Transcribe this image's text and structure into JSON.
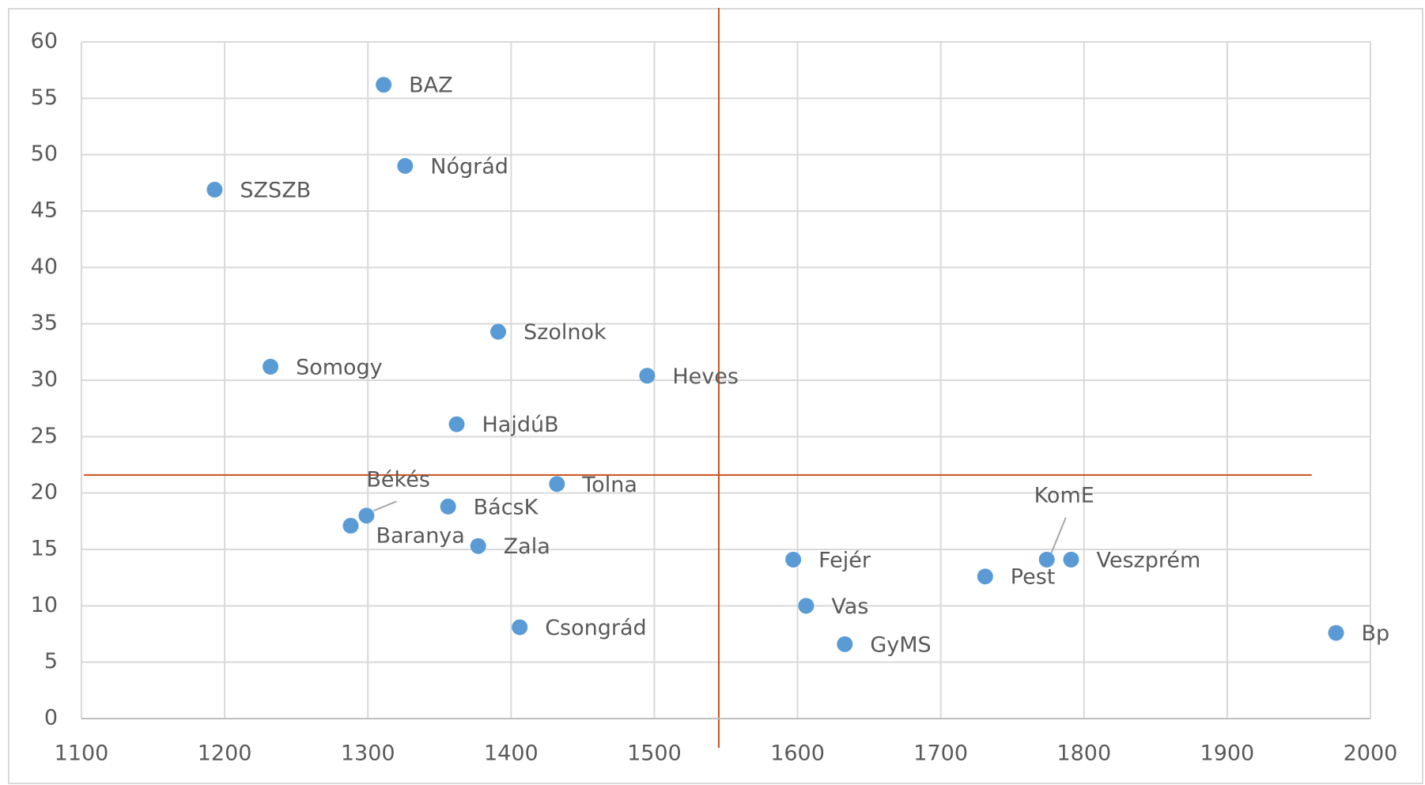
{
  "chart_data": {
    "type": "scatter",
    "series": [
      {
        "color": "#5b9bd5",
        "labels": [
          "BAZ",
          "Nógrád",
          "SZSZB",
          "Szolnok",
          "Somogy",
          "Heves",
          "HajdúB",
          "Tolna",
          "Békés",
          "BácsK",
          "Baranya",
          "Zala",
          "Csongrád",
          "Fejér",
          "Vas",
          "GyMS",
          "Pest",
          "KomE",
          "Veszprém",
          "Bp"
        ],
        "x": [
          1311,
          1326,
          1193,
          1391,
          1232,
          1495,
          1362,
          1432,
          1299,
          1356,
          1288,
          1377,
          1406,
          1597,
          1606,
          1633,
          1731,
          1774,
          1791,
          1976
        ],
        "values": [
          56.2,
          49.0,
          46.9,
          34.3,
          31.2,
          30.4,
          26.1,
          20.8,
          18.0,
          18.8,
          17.1,
          15.3,
          8.1,
          14.1,
          10.0,
          6.6,
          12.6,
          14.1,
          14.1,
          7.6
        ]
      }
    ],
    "xlim": [
      1100,
      2000
    ],
    "xticks": [
      1100,
      1200,
      1300,
      1400,
      1500,
      1600,
      1700,
      1800,
      1900,
      2000
    ],
    "ylim": [
      0,
      60
    ],
    "yticks": [
      0,
      5,
      10,
      15,
      20,
      25,
      30,
      35,
      40,
      45,
      50,
      55,
      60
    ],
    "grid": true,
    "reference_lines": {
      "color": "#c9501c",
      "x": 1545,
      "y": 21.6
    }
  }
}
